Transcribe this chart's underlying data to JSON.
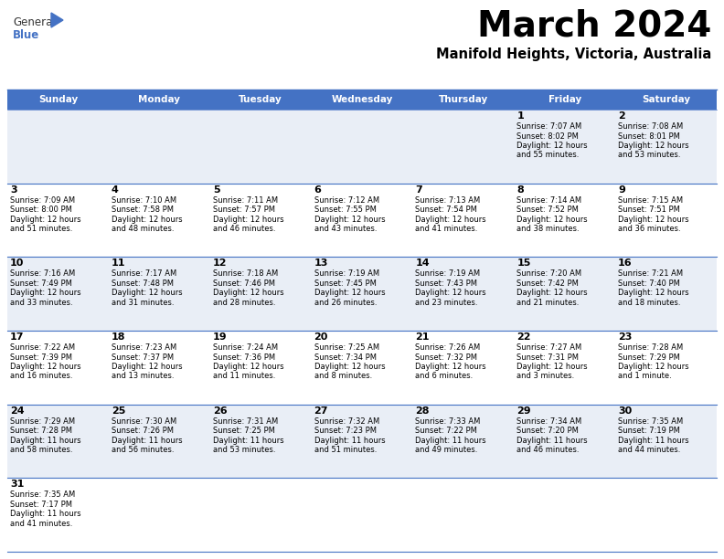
{
  "title": "March 2024",
  "subtitle": "Manifold Heights, Victoria, Australia",
  "header_bg": "#4472C4",
  "header_text_color": "#FFFFFF",
  "cell_bg_odd": "#E9EEF6",
  "cell_bg_even": "#FFFFFF",
  "border_color": "#4472C4",
  "days_of_week": [
    "Sunday",
    "Monday",
    "Tuesday",
    "Wednesday",
    "Thursday",
    "Friday",
    "Saturday"
  ],
  "calendar": [
    [
      null,
      null,
      null,
      null,
      null,
      1,
      2
    ],
    [
      3,
      4,
      5,
      6,
      7,
      8,
      9
    ],
    [
      10,
      11,
      12,
      13,
      14,
      15,
      16
    ],
    [
      17,
      18,
      19,
      20,
      21,
      22,
      23
    ],
    [
      24,
      25,
      26,
      27,
      28,
      29,
      30
    ],
    [
      31,
      null,
      null,
      null,
      null,
      null,
      null
    ]
  ],
  "sunrise": {
    "1": "7:07 AM",
    "2": "7:08 AM",
    "3": "7:09 AM",
    "4": "7:10 AM",
    "5": "7:11 AM",
    "6": "7:12 AM",
    "7": "7:13 AM",
    "8": "7:14 AM",
    "9": "7:15 AM",
    "10": "7:16 AM",
    "11": "7:17 AM",
    "12": "7:18 AM",
    "13": "7:19 AM",
    "14": "7:19 AM",
    "15": "7:20 AM",
    "16": "7:21 AM",
    "17": "7:22 AM",
    "18": "7:23 AM",
    "19": "7:24 AM",
    "20": "7:25 AM",
    "21": "7:26 AM",
    "22": "7:27 AM",
    "23": "7:28 AM",
    "24": "7:29 AM",
    "25": "7:30 AM",
    "26": "7:31 AM",
    "27": "7:32 AM",
    "28": "7:33 AM",
    "29": "7:34 AM",
    "30": "7:35 AM",
    "31": "7:35 AM"
  },
  "sunset": {
    "1": "8:02 PM",
    "2": "8:01 PM",
    "3": "8:00 PM",
    "4": "7:58 PM",
    "5": "7:57 PM",
    "6": "7:55 PM",
    "7": "7:54 PM",
    "8": "7:52 PM",
    "9": "7:51 PM",
    "10": "7:49 PM",
    "11": "7:48 PM",
    "12": "7:46 PM",
    "13": "7:45 PM",
    "14": "7:43 PM",
    "15": "7:42 PM",
    "16": "7:40 PM",
    "17": "7:39 PM",
    "18": "7:37 PM",
    "19": "7:36 PM",
    "20": "7:34 PM",
    "21": "7:32 PM",
    "22": "7:31 PM",
    "23": "7:29 PM",
    "24": "7:28 PM",
    "25": "7:26 PM",
    "26": "7:25 PM",
    "27": "7:23 PM",
    "28": "7:22 PM",
    "29": "7:20 PM",
    "30": "7:19 PM",
    "31": "7:17 PM"
  },
  "daylight": {
    "1": [
      "12 hours",
      "and 55 minutes."
    ],
    "2": [
      "12 hours",
      "and 53 minutes."
    ],
    "3": [
      "12 hours",
      "and 51 minutes."
    ],
    "4": [
      "12 hours",
      "and 48 minutes."
    ],
    "5": [
      "12 hours",
      "and 46 minutes."
    ],
    "6": [
      "12 hours",
      "and 43 minutes."
    ],
    "7": [
      "12 hours",
      "and 41 minutes."
    ],
    "8": [
      "12 hours",
      "and 38 minutes."
    ],
    "9": [
      "12 hours",
      "and 36 minutes."
    ],
    "10": [
      "12 hours",
      "and 33 minutes."
    ],
    "11": [
      "12 hours",
      "and 31 minutes."
    ],
    "12": [
      "12 hours",
      "and 28 minutes."
    ],
    "13": [
      "12 hours",
      "and 26 minutes."
    ],
    "14": [
      "12 hours",
      "and 23 minutes."
    ],
    "15": [
      "12 hours",
      "and 21 minutes."
    ],
    "16": [
      "12 hours",
      "and 18 minutes."
    ],
    "17": [
      "12 hours",
      "and 16 minutes."
    ],
    "18": [
      "12 hours",
      "and 13 minutes."
    ],
    "19": [
      "12 hours",
      "and 11 minutes."
    ],
    "20": [
      "12 hours",
      "and 8 minutes."
    ],
    "21": [
      "12 hours",
      "and 6 minutes."
    ],
    "22": [
      "12 hours",
      "and 3 minutes."
    ],
    "23": [
      "12 hours",
      "and 1 minute."
    ],
    "24": [
      "11 hours",
      "and 58 minutes."
    ],
    "25": [
      "11 hours",
      "and 56 minutes."
    ],
    "26": [
      "11 hours",
      "and 53 minutes."
    ],
    "27": [
      "11 hours",
      "and 51 minutes."
    ],
    "28": [
      "11 hours",
      "and 49 minutes."
    ],
    "29": [
      "11 hours",
      "and 46 minutes."
    ],
    "30": [
      "11 hours",
      "and 44 minutes."
    ],
    "31": [
      "11 hours",
      "and 41 minutes."
    ]
  },
  "fig_width": 7.92,
  "fig_height": 6.12,
  "dpi": 100
}
